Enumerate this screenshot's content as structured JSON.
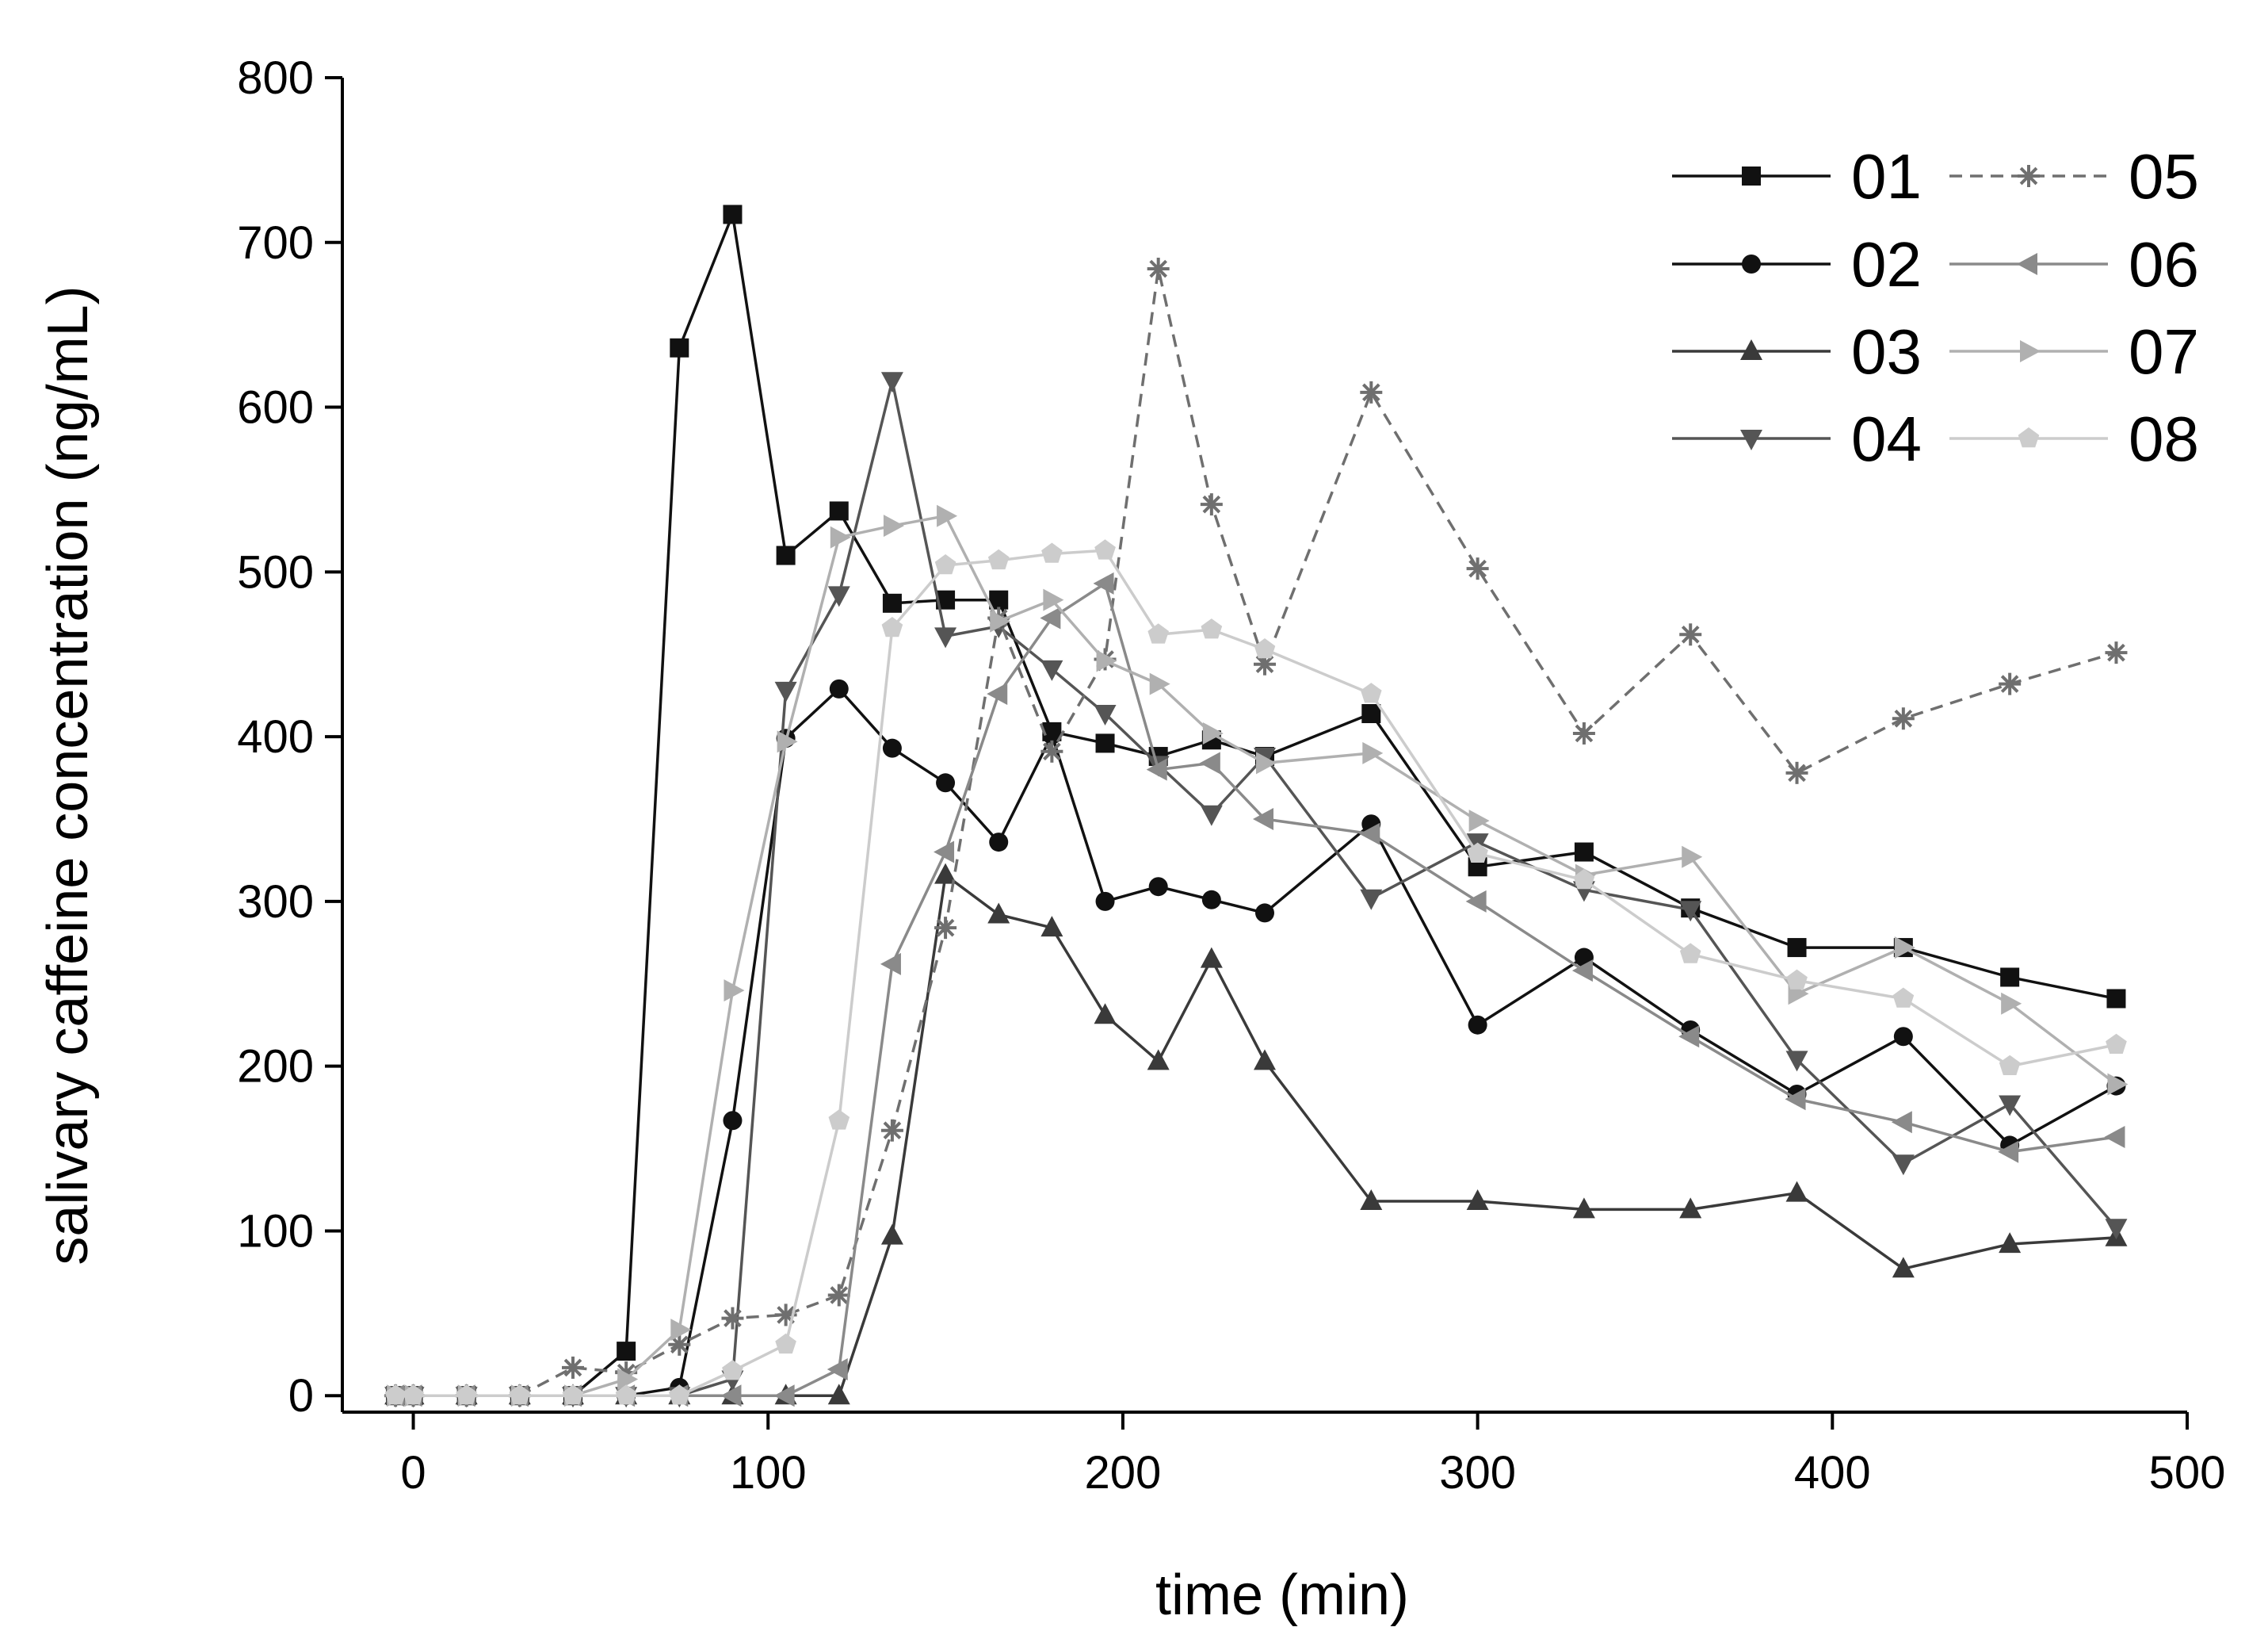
{
  "chart_data": {
    "type": "line",
    "title": "",
    "xlabel": "time (min)",
    "ylabel": "salivary caffeine concentration (ng/mL)",
    "xlim": [
      -20,
      500
    ],
    "ylim": [
      -10,
      800
    ],
    "xticks": [
      0,
      100,
      200,
      300,
      400,
      500
    ],
    "yticks": [
      0,
      100,
      200,
      300,
      400,
      500,
      600,
      700,
      800
    ],
    "grid": false,
    "legend_position": "top-right",
    "series": [
      {
        "name": "01",
        "color": "#111111",
        "marker": "square",
        "dash": "solid",
        "x": [
          -5,
          0,
          15,
          30,
          45,
          60,
          75,
          90,
          105,
          120,
          135,
          150,
          165,
          180,
          195,
          210,
          225,
          240,
          270,
          300,
          330,
          360,
          390,
          420,
          450,
          480
        ],
        "y": [
          0,
          0,
          0,
          0,
          0,
          27,
          636,
          717,
          510,
          537,
          481,
          483,
          483,
          403,
          396,
          388,
          398,
          388,
          414,
          321,
          330,
          296,
          272,
          272,
          254,
          241
        ]
      },
      {
        "name": "02",
        "color": "#111111",
        "marker": "circle",
        "dash": "solid",
        "x": [
          -5,
          0,
          15,
          30,
          45,
          60,
          75,
          90,
          105,
          120,
          135,
          150,
          165,
          180,
          195,
          210,
          225,
          240,
          270,
          300,
          330,
          360,
          390,
          420,
          450,
          480
        ],
        "y": [
          0,
          0,
          0,
          0,
          0,
          0,
          5,
          167,
          399,
          429,
          393,
          372,
          336,
          401,
          300,
          309,
          301,
          293,
          347,
          225,
          266,
          222,
          183,
          218,
          152,
          188
        ]
      },
      {
        "name": "03",
        "color": "#3a3a3a",
        "marker": "triangle-up",
        "dash": "solid",
        "x": [
          -5,
          0,
          15,
          30,
          45,
          60,
          75,
          90,
          105,
          120,
          135,
          150,
          165,
          180,
          195,
          210,
          225,
          240,
          270,
          300,
          330,
          360,
          390,
          420,
          450,
          480
        ],
        "y": [
          0,
          0,
          0,
          0,
          0,
          0,
          0,
          0,
          0,
          0,
          97,
          316,
          292,
          284,
          231,
          203,
          265,
          203,
          118,
          118,
          113,
          113,
          123,
          77,
          92,
          96
        ]
      },
      {
        "name": "04",
        "color": "#555555",
        "marker": "triangle-down",
        "dash": "solid",
        "x": [
          -5,
          0,
          15,
          30,
          45,
          60,
          75,
          90,
          105,
          120,
          135,
          150,
          165,
          180,
          195,
          210,
          225,
          240,
          270,
          300,
          330,
          360,
          390,
          420,
          450,
          480
        ],
        "y": [
          0,
          0,
          0,
          0,
          0,
          0,
          0,
          10,
          428,
          486,
          616,
          461,
          467,
          441,
          414,
          383,
          353,
          388,
          302,
          336,
          307,
          295,
          204,
          141,
          177,
          102
        ]
      },
      {
        "name": "05",
        "color": "#6f6f6f",
        "marker": "asterisk",
        "dash": "dashed",
        "x": [
          -5,
          0,
          15,
          30,
          45,
          60,
          75,
          90,
          105,
          120,
          135,
          150,
          165,
          180,
          195,
          210,
          225,
          240,
          270,
          300,
          330,
          360,
          390,
          420,
          450,
          480
        ],
        "y": [
          0,
          0,
          0,
          0,
          17,
          14,
          31,
          47,
          49,
          61,
          161,
          284,
          472,
          391,
          447,
          684,
          541,
          444,
          609,
          502,
          402,
          462,
          378,
          411,
          432,
          451
        ]
      },
      {
        "name": "06",
        "color": "#8a8a8a",
        "marker": "triangle-left",
        "dash": "solid",
        "x": [
          -5,
          0,
          15,
          30,
          45,
          60,
          75,
          90,
          105,
          120,
          135,
          150,
          165,
          180,
          195,
          210,
          225,
          240,
          270,
          300,
          330,
          360,
          390,
          420,
          450,
          480
        ],
        "y": [
          0,
          0,
          0,
          0,
          0,
          0,
          0,
          0,
          0,
          16,
          262,
          330,
          426,
          472,
          493,
          380,
          384,
          350,
          341,
          300,
          258,
          218,
          180,
          166,
          148,
          157
        ]
      },
      {
        "name": "07",
        "color": "#b0b0b0",
        "marker": "triangle-right",
        "dash": "solid",
        "x": [
          -5,
          0,
          15,
          30,
          45,
          60,
          75,
          90,
          105,
          120,
          135,
          150,
          165,
          180,
          195,
          210,
          225,
          240,
          270,
          300,
          330,
          360,
          390,
          420,
          450,
          480
        ],
        "y": [
          0,
          0,
          0,
          0,
          0,
          10,
          40,
          246,
          397,
          521,
          528,
          534,
          470,
          483,
          446,
          432,
          402,
          384,
          390,
          349,
          316,
          327,
          244,
          272,
          238,
          189
        ]
      },
      {
        "name": "08",
        "color": "#cccccc",
        "marker": "pentagon",
        "dash": "solid",
        "x": [
          -5,
          0,
          15,
          30,
          45,
          60,
          75,
          90,
          105,
          120,
          135,
          150,
          165,
          180,
          195,
          210,
          225,
          240,
          270,
          300,
          330,
          360,
          390,
          420,
          450,
          480
        ],
        "y": [
          0,
          0,
          0,
          0,
          0,
          0,
          0,
          15,
          31,
          167,
          466,
          504,
          507,
          511,
          513,
          462,
          465,
          453,
          426,
          329,
          313,
          268,
          252,
          241,
          200,
          213
        ]
      }
    ]
  }
}
